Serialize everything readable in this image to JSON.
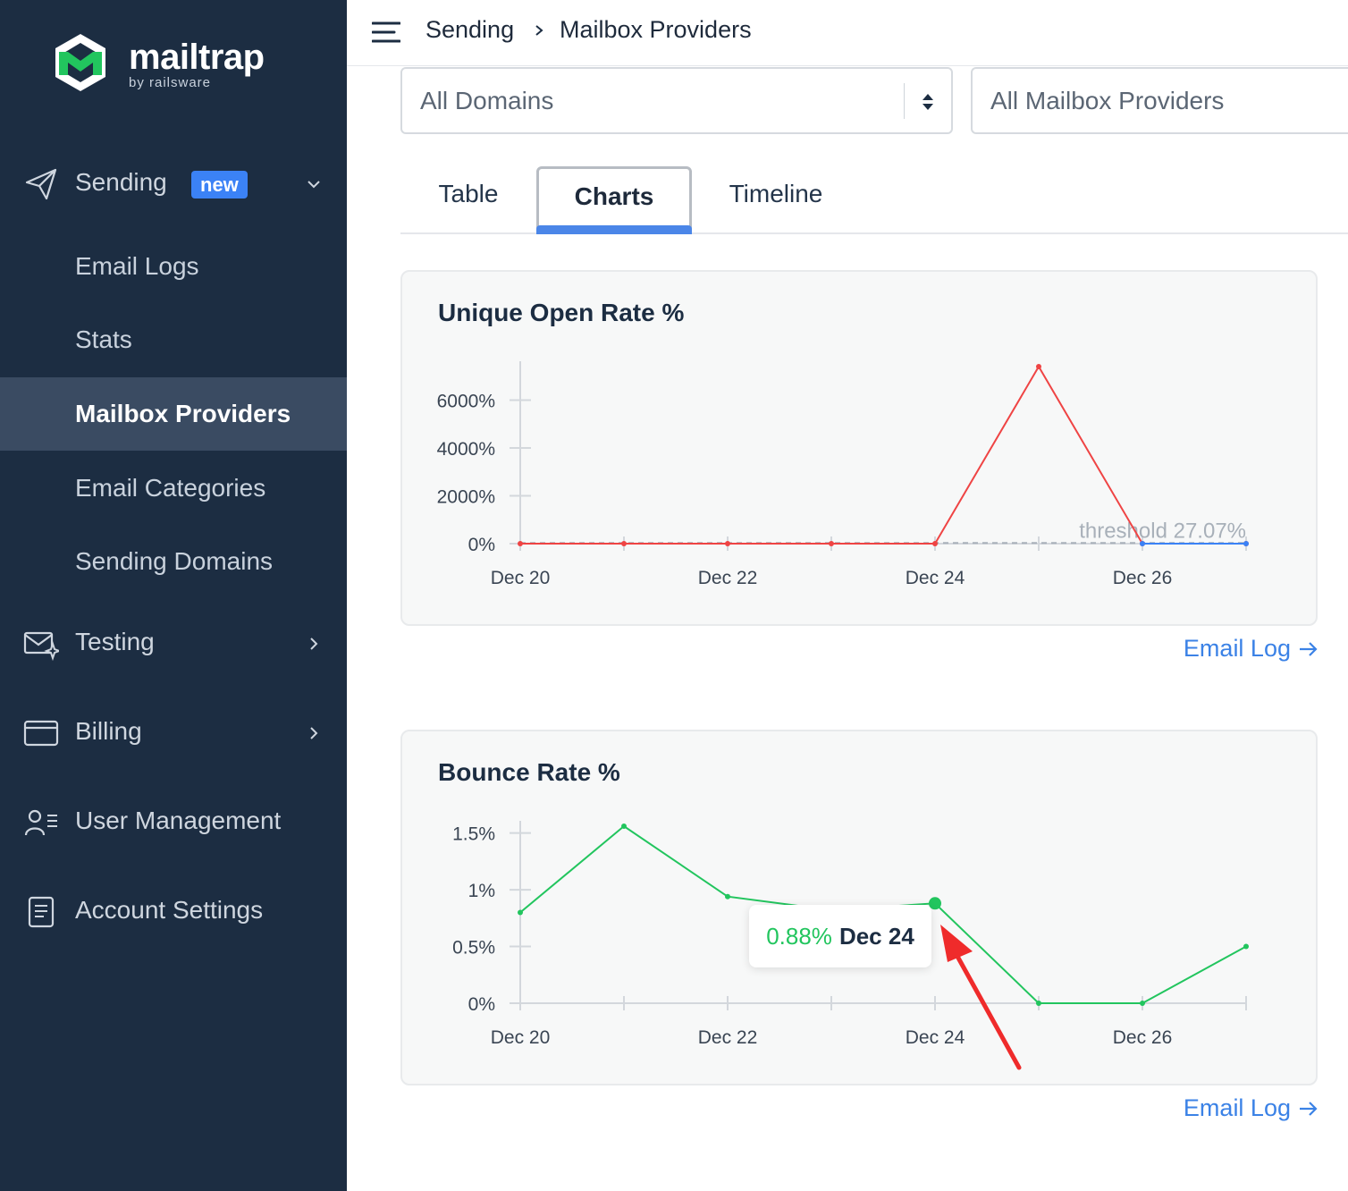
{
  "brand": {
    "name": "mailtrap",
    "tagline": "by railsware",
    "colors": {
      "sidebar": "#1c2d42",
      "accent": "#3b82f6",
      "logo_green": "#22c55e"
    }
  },
  "sidebar": {
    "sending": {
      "label": "Sending",
      "badge": "new",
      "icon": "paper-plane-icon"
    },
    "sending_items": [
      {
        "label": "Email Logs",
        "active": false
      },
      {
        "label": "Stats",
        "active": false
      },
      {
        "label": "Mailbox Providers",
        "active": true
      },
      {
        "label": "Email Categories",
        "active": false
      },
      {
        "label": "Sending Domains",
        "active": false
      }
    ],
    "testing": {
      "label": "Testing",
      "icon": "envelope-sparkle-icon"
    },
    "billing": {
      "label": "Billing",
      "icon": "credit-card-icon"
    },
    "user_management": {
      "label": "User Management",
      "icon": "users-icon"
    },
    "account_settings": {
      "label": "Account Settings",
      "icon": "document-icon"
    }
  },
  "header": {
    "breadcrumb": [
      "Sending",
      "Mailbox Providers"
    ]
  },
  "filters": {
    "domains": "All Domains",
    "providers": "All Mailbox Providers"
  },
  "tabs": [
    {
      "label": "Table",
      "active": false
    },
    {
      "label": "Charts",
      "active": true
    },
    {
      "label": "Timeline",
      "active": false
    }
  ],
  "charts": {
    "open_rate": {
      "title": "Unique Open Rate %",
      "link": "Email Log"
    },
    "bounce_rate": {
      "title": "Bounce Rate %",
      "link": "Email Log",
      "tooltip": {
        "value": "0.88%",
        "date": "Dec 24"
      }
    }
  },
  "chart_data": [
    {
      "type": "line",
      "title": "Unique Open Rate %",
      "x": [
        "Dec 20",
        "Dec 21",
        "Dec 22",
        "Dec 23",
        "Dec 24",
        "Dec 25",
        "Dec 26",
        "Dec 27"
      ],
      "x_tick_labels": [
        "Dec 20",
        "Dec 22",
        "Dec 24",
        "Dec 26"
      ],
      "y_tick_labels": [
        {
          "value": 0,
          "label": "0%"
        },
        {
          "value": 2000,
          "label": "2000%"
        },
        {
          "value": 4000,
          "label": "4000%"
        },
        {
          "value": 6000,
          "label": "6000%"
        }
      ],
      "ylim": [
        0,
        7400
      ],
      "series": [
        {
          "color": "#ef4444",
          "values": [
            0,
            0,
            0,
            0,
            0,
            7400,
            0,
            0
          ]
        },
        {
          "color": "#3b82f6",
          "values": [
            null,
            null,
            null,
            null,
            null,
            null,
            0,
            0
          ]
        }
      ],
      "threshold": {
        "value": 27.07,
        "label": "threshold 27.07%"
      },
      "grid": false
    },
    {
      "type": "line",
      "title": "Bounce Rate %",
      "x": [
        "Dec 20",
        "Dec 21",
        "Dec 22",
        "Dec 23",
        "Dec 24",
        "Dec 25",
        "Dec 26",
        "Dec 27"
      ],
      "x_tick_labels": [
        "Dec 20",
        "Dec 22",
        "Dec 24",
        "Dec 26"
      ],
      "y_tick_labels": [
        {
          "value": 0,
          "label": "0%"
        },
        {
          "value": 0.5,
          "label": "0.5%"
        },
        {
          "value": 1,
          "label": "1%"
        },
        {
          "value": 1.5,
          "label": "1.5%"
        }
      ],
      "ylim": [
        0,
        1.56
      ],
      "series": [
        {
          "color": "#22c55e",
          "values": [
            0.8,
            1.56,
            0.94,
            0.82,
            0.88,
            0,
            0,
            0.5
          ]
        }
      ],
      "highlight": {
        "x": "Dec 24",
        "value": 0.88
      },
      "grid": false
    }
  ]
}
